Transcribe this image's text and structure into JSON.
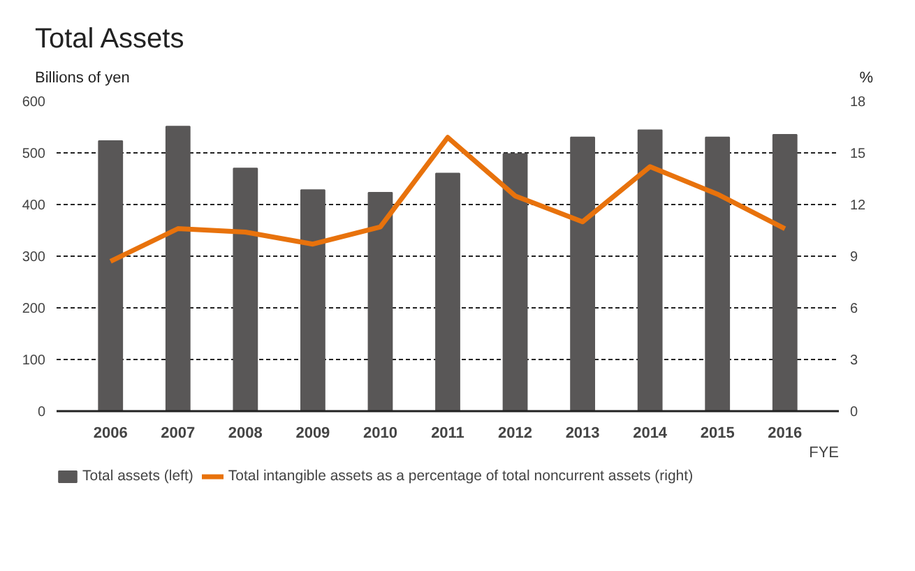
{
  "chart_data": {
    "type": "bar",
    "title": "Total Assets",
    "ylabel": "Billions of yen",
    "y2label": "%",
    "xlabel": "FYE",
    "categories": [
      "2006",
      "2007",
      "2008",
      "2009",
      "2010",
      "2011",
      "2012",
      "2013",
      "2014",
      "2015",
      "2016"
    ],
    "series": [
      {
        "name": "Total assets (left)",
        "color": "#595757",
        "values": [
          523,
          551,
          470,
          428,
          423,
          460,
          498,
          530,
          544,
          530,
          535
        ]
      },
      {
        "name": "Total intangible assets as a percentage of total noncurrent assets (right)",
        "type": "line",
        "axis": "y2",
        "color": "#e8720c",
        "values": [
          8.7,
          10.6,
          10.4,
          9.7,
          10.7,
          15.9,
          12.5,
          11.0,
          14.2,
          12.6,
          10.6
        ]
      }
    ],
    "ylim": [
      0,
      600
    ],
    "yticks": [
      0,
      100,
      200,
      300,
      400,
      500,
      600
    ],
    "y2lim": [
      0,
      18
    ],
    "y2ticks": [
      0,
      3,
      6,
      9,
      12,
      15,
      18
    ],
    "grid": "y",
    "legend": "bottom",
    "marker": "none",
    "line_style": "solid"
  }
}
